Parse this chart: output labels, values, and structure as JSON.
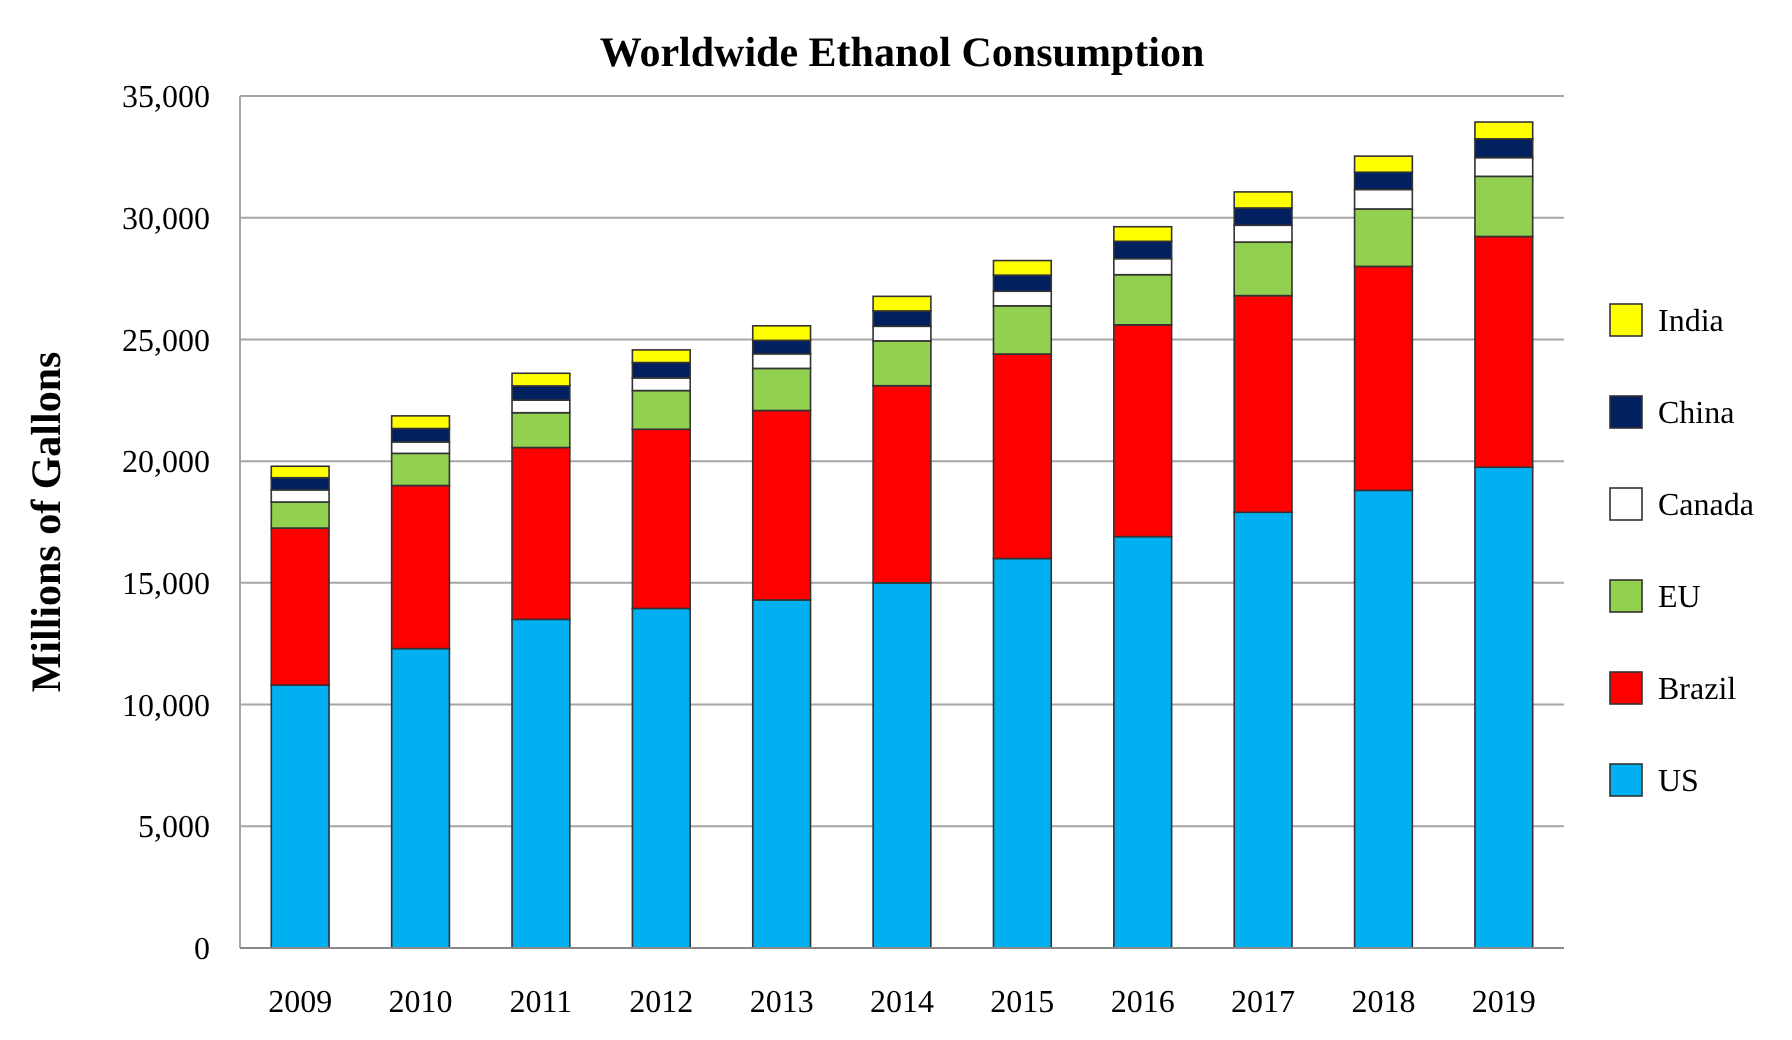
{
  "chart_data": {
    "type": "bar",
    "title": "Worldwide Ethanol Consumption",
    "ylabel": "Millions of Gallons",
    "categories": [
      "2009",
      "2010",
      "2011",
      "2012",
      "2013",
      "2014",
      "2015",
      "2016",
      "2017",
      "2018",
      "2019"
    ],
    "stacked": true,
    "grid": "y",
    "legend": "right",
    "ylim": [
      0,
      35000
    ],
    "yticks": [
      {
        "value": 0,
        "label": "0"
      },
      {
        "value": 5000,
        "label": "5,000"
      },
      {
        "value": 10000,
        "label": "10,000"
      },
      {
        "value": 15000,
        "label": "15,000"
      },
      {
        "value": 20000,
        "label": "20,000"
      },
      {
        "value": 25000,
        "label": "25,000"
      },
      {
        "value": 30000,
        "label": "30,000"
      },
      {
        "value": 35000,
        "label": "35,000"
      }
    ],
    "series": [
      {
        "name": "US",
        "color": "#00b0f0",
        "values": [
          10800,
          12300,
          13500,
          13950,
          14300,
          15000,
          16000,
          16900,
          17900,
          18800,
          19750
        ]
      },
      {
        "name": "Brazil",
        "color": "#ff0000",
        "values": [
          6450,
          6700,
          7060,
          7360,
          7780,
          8100,
          8400,
          8700,
          8900,
          9200,
          9480
        ]
      },
      {
        "name": "EU",
        "color": "#92d050",
        "values": [
          1070,
          1320,
          1430,
          1590,
          1730,
          1840,
          1980,
          2060,
          2200,
          2360,
          2470
        ]
      },
      {
        "name": "Canada",
        "color": "#ffffff",
        "values": [
          500,
          470,
          520,
          520,
          600,
          600,
          600,
          660,
          690,
          800,
          770
        ]
      },
      {
        "name": "China",
        "color": "#002060",
        "values": [
          500,
          550,
          580,
          630,
          550,
          630,
          660,
          710,
          710,
          710,
          770
        ]
      },
      {
        "name": "India",
        "color": "#ffff00",
        "values": [
          470,
          520,
          520,
          520,
          600,
          600,
          600,
          600,
          660,
          660,
          690
        ]
      }
    ]
  }
}
